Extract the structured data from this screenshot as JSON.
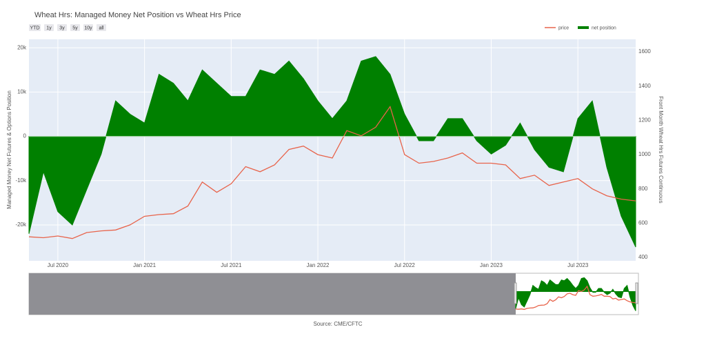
{
  "chart_data": {
    "type": "area_line",
    "title": "Wheat Hrs: Managed Money Net Position vs Wheat Hrs Price",
    "buttons": [
      "YTD",
      "1y",
      "3y",
      "5y",
      "10y",
      "all"
    ],
    "y_label": "Managed Money Net Futures & Options Position",
    "y2_label": "Front Month Wheat Hrs Futures Continuous",
    "source": "Source: CME/CFTC",
    "x": [
      "2020-05",
      "2020-06",
      "2020-07",
      "2020-08",
      "2020-09",
      "2020-10",
      "2020-11",
      "2020-12",
      "2021-01",
      "2021-02",
      "2021-03",
      "2021-04",
      "2021-05",
      "2021-06",
      "2021-07",
      "2021-08",
      "2021-09",
      "2021-10",
      "2021-11",
      "2021-12",
      "2022-01",
      "2022-02",
      "2022-03",
      "2022-04",
      "2022-05",
      "2022-06",
      "2022-07",
      "2022-08",
      "2022-09",
      "2022-10",
      "2022-11",
      "2022-12",
      "2023-01",
      "2023-02",
      "2023-03",
      "2023-04",
      "2023-05",
      "2023-06",
      "2023-07",
      "2023-08",
      "2023-09",
      "2023-10",
      "2023-11"
    ],
    "xlim": [
      "2020-05",
      "2023-11"
    ],
    "xticks": [
      {
        "value": "2020-07",
        "label": "Jul 2020"
      },
      {
        "value": "2021-01",
        "label": "Jan 2021"
      },
      {
        "value": "2021-07",
        "label": "Jul 2021"
      },
      {
        "value": "2022-01",
        "label": "Jan 2022"
      },
      {
        "value": "2022-07",
        "label": "Jul 2022"
      },
      {
        "value": "2023-01",
        "label": "Jan 2023"
      },
      {
        "value": "2023-07",
        "label": "Jul 2023"
      }
    ],
    "ylim": [
      -28100,
      21900
    ],
    "yticks": [
      {
        "value": -20000,
        "label": "-20k"
      },
      {
        "value": -10000,
        "label": "-10k"
      },
      0,
      {
        "value": 10000,
        "label": "10k"
      },
      {
        "value": 20000,
        "label": "20k"
      }
    ],
    "y2lim": [
      380,
      1673
    ],
    "y2ticks": [
      400,
      600,
      800,
      1000,
      1200,
      1400,
      1600
    ],
    "grid": true,
    "legend": "top-right",
    "series": [
      {
        "name": "price",
        "color": "#e8634a",
        "kind": "line",
        "axis": "y2",
        "values": [
          520,
          515,
          525,
          510,
          545,
          555,
          560,
          590,
          640,
          650,
          655,
          700,
          840,
          780,
          830,
          930,
          900,
          940,
          1030,
          1050,
          1000,
          980,
          1140,
          1110,
          1160,
          1280,
          1000,
          950,
          960,
          980,
          1010,
          950,
          950,
          940,
          860,
          880,
          820,
          840,
          860,
          800,
          760,
          740,
          730
        ]
      },
      {
        "name": "net position",
        "color": "#008000",
        "kind": "area",
        "axis": "y",
        "values": [
          -22000,
          -8000,
          -17000,
          -20000,
          -12000,
          -4000,
          8000,
          5000,
          3000,
          14000,
          12000,
          8000,
          15000,
          12000,
          9000,
          9000,
          15000,
          14000,
          17000,
          13000,
          8000,
          4000,
          8000,
          17000,
          18000,
          14000,
          5000,
          -1000,
          -1000,
          4000,
          4000,
          -1000,
          -4000,
          -2000,
          3000,
          -3000,
          -7000,
          -8000,
          4000,
          8000,
          -7000,
          -18000,
          -25000
        ]
      }
    ]
  }
}
